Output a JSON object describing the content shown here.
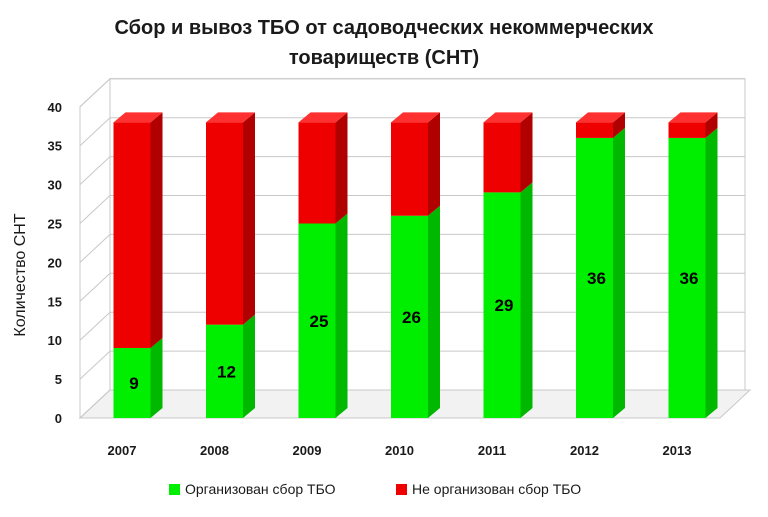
{
  "chart_data": {
    "type": "bar",
    "stacked": true,
    "three_d": true,
    "title_line1": "Сбор  и вывоз ТБО от садоводческих некоммерческих",
    "title_line2": "товариществ (СНТ)",
    "xlabel": "",
    "ylabel": "Количество СНТ",
    "ylim": [
      0,
      40
    ],
    "yticks": [
      0,
      5,
      10,
      15,
      20,
      25,
      30,
      35,
      40
    ],
    "grid": true,
    "legend_position": "bottom",
    "categories": [
      "2007",
      "2008",
      "2009",
      "2010",
      "2011",
      "2012",
      "2013"
    ],
    "series": [
      {
        "name": "Организован сбор ТБО",
        "values": [
          9,
          12,
          25,
          26,
          29,
          36,
          36
        ],
        "color": "#00ee00",
        "color_side": "#00b800",
        "color_top": "#55ff55"
      },
      {
        "name": "Не организован сбор ТБО",
        "values": [
          29,
          26,
          13,
          12,
          9,
          2,
          2
        ],
        "color": "#ee0000",
        "color_side": "#b00000",
        "color_top": "#ff3030"
      }
    ],
    "data_labels": [
      "9",
      "12",
      "25",
      "26",
      "29",
      "36",
      "36"
    ]
  }
}
